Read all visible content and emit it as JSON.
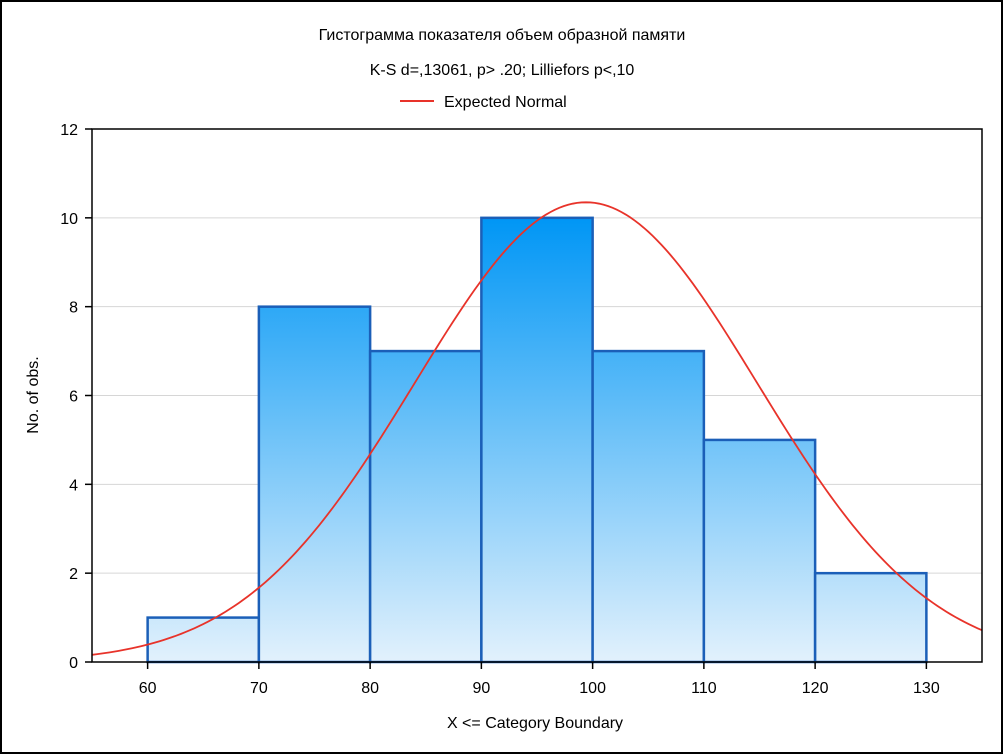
{
  "chart_data": {
    "type": "bar",
    "title": "Гистограмма показателя объем образной памяти",
    "subtitle": "K-S d=,13061, p> .20; Lilliefors p<,10",
    "xlabel": "X <= Category Boundary",
    "ylabel": "No. of obs.",
    "xlim": [
      55,
      135
    ],
    "ylim": [
      0,
      12
    ],
    "x_ticks": [
      "60",
      "70",
      "80",
      "90",
      "100",
      "110",
      "120",
      "130"
    ],
    "y_ticks": [
      "0",
      "2",
      "4",
      "6",
      "8",
      "10",
      "12"
    ],
    "bins": [
      {
        "from": 60,
        "to": 70,
        "value": 1
      },
      {
        "from": 70,
        "to": 80,
        "value": 8
      },
      {
        "from": 80,
        "to": 90,
        "value": 7
      },
      {
        "from": 90,
        "to": 100,
        "value": 10
      },
      {
        "from": 100,
        "to": 110,
        "value": 7
      },
      {
        "from": 110,
        "to": 120,
        "value": 5
      },
      {
        "from": 120,
        "to": 130,
        "value": 2
      }
    ],
    "series": [
      {
        "name": "Expected Normal",
        "type": "line",
        "mean": 99.4,
        "sd": 15.4,
        "peak": 10.35,
        "color": "#e8332a"
      }
    ],
    "legend": {
      "position": "top-center",
      "entries": [
        "Expected Normal"
      ]
    },
    "grid": {
      "horizontal": true,
      "vertical": false
    },
    "colors": {
      "bar_fill_top": "#0096f5",
      "bar_fill_bottom": "#e2f1fc",
      "bar_border": "#1b5fb8",
      "curve": "#e8332a",
      "grid": "#d6d6d6"
    }
  }
}
